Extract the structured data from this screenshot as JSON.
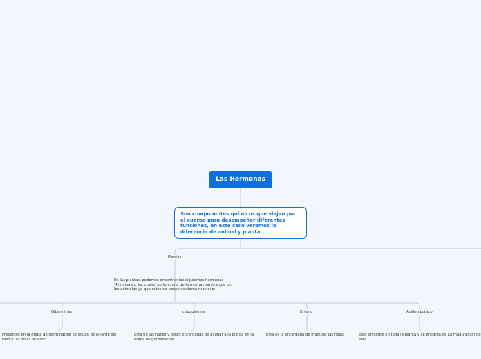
{
  "root": {
    "title": "Las Hormonas"
  },
  "main": {
    "text": "Son componentes químicos que viajan por el cuerpo para desempeñar diferentes funciones, en este caso veremos la diferencia de animal y planta"
  },
  "plantas": {
    "label": "Plantas",
    "intro": "En las plantas, podemos encontrar las siguientes hormonas \"Principales, las cuales no funciona de la misma manera que en los animales ya que estas no poseen sistema nervioso:",
    "hormonas": [
      {
        "name": "Giberelinas",
        "description": "Presentes en la etapa de germinación se ocupa de el largo del tallo y las hojas de este"
      },
      {
        "name": "citoquininas",
        "description": "Esta en las raíces y están encargadas de ayudar a la planta en la etapa de germinación"
      },
      {
        "name": "Etileno",
        "description": "Esta es la encargada de madurar las hojas"
      },
      {
        "name": "Acido abcisico",
        "description": "Esta presente en toda la planta y se encarga de La maduración de esta"
      }
    ]
  }
}
